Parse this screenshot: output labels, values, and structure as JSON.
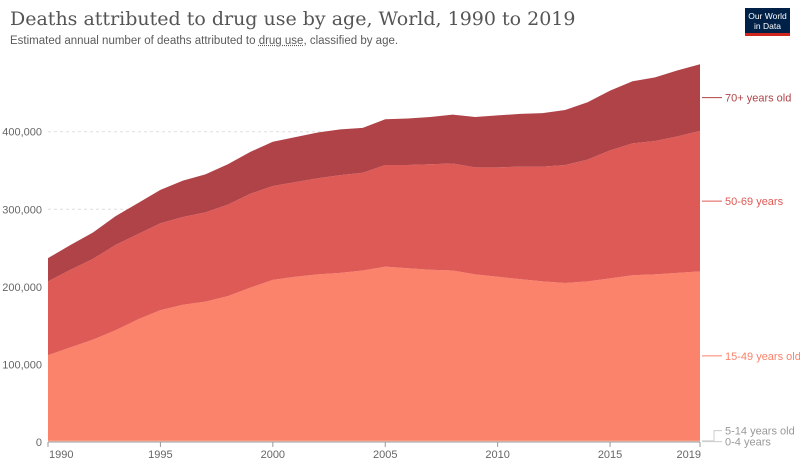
{
  "header": {
    "title": "Deaths attributed to drug use by age, World, 1990 to 2019",
    "subtitle_before": "Estimated annual number of deaths attributed to ",
    "subtitle_term": "drug use",
    "subtitle_after": ", classified by age.",
    "logo_line1": "Our World",
    "logo_line2": "in Data"
  },
  "colors": {
    "0-4 years": "#f7c5b8",
    "5-14 years old": "#fbab93",
    "15-49 years old": "#fb826b",
    "50-69 years": "#de5a56",
    "70+ years old": "#b04348"
  },
  "chart_data": {
    "type": "area",
    "stacked": true,
    "title": "Deaths attributed to drug use by age, World, 1990 to 2019",
    "x": [
      1990,
      1991,
      1992,
      1993,
      1994,
      1995,
      1996,
      1997,
      1998,
      1999,
      2000,
      2001,
      2002,
      2003,
      2004,
      2005,
      2006,
      2007,
      2008,
      2009,
      2010,
      2011,
      2012,
      2013,
      2014,
      2015,
      2016,
      2017,
      2018,
      2019
    ],
    "xticks": [
      "1990",
      "1995",
      "2000",
      "2005",
      "2010",
      "2015",
      "2019"
    ],
    "yticks": [
      "0",
      "100,000",
      "200,000",
      "300,000",
      "400,000"
    ],
    "ylim": [
      0,
      495000
    ],
    "grid": true,
    "legend": "right-end labels",
    "series": [
      {
        "name": "0-4 years",
        "values": [
          1000,
          1000,
          1000,
          1000,
          1000,
          1000,
          1000,
          1000,
          1000,
          1000,
          1000,
          1000,
          1000,
          1000,
          1000,
          1000,
          1000,
          1000,
          1000,
          1000,
          1000,
          1000,
          1000,
          1000,
          1000,
          1000,
          1000,
          1000,
          1000,
          1000
        ]
      },
      {
        "name": "5-14 years old",
        "values": [
          1000,
          1000,
          1000,
          1000,
          1000,
          1000,
          1000,
          1000,
          1000,
          1000,
          1000,
          1000,
          1000,
          1000,
          1000,
          1000,
          1000,
          1000,
          1000,
          1000,
          1000,
          1000,
          1000,
          1000,
          1000,
          1000,
          1000,
          1000,
          1000,
          1000
        ]
      },
      {
        "name": "15-49 years old",
        "values": [
          110000,
          120000,
          130000,
          142000,
          156000,
          168000,
          175000,
          179000,
          186000,
          197000,
          207000,
          211000,
          214000,
          216000,
          219000,
          224000,
          222000,
          220000,
          219000,
          214000,
          211000,
          208000,
          205000,
          203000,
          205000,
          209000,
          213000,
          214000,
          216000,
          218000
        ]
      },
      {
        "name": "50-69 years",
        "values": [
          95000,
          100000,
          104000,
          110000,
          110000,
          112000,
          113000,
          115000,
          118000,
          121000,
          121000,
          122000,
          124000,
          126000,
          126000,
          131000,
          133000,
          136000,
          138000,
          138000,
          141000,
          145000,
          148000,
          152000,
          157000,
          165000,
          170000,
          172000,
          176000,
          181000
        ]
      },
      {
        "name": "70+ years old",
        "values": [
          30000,
          32000,
          34000,
          37000,
          40000,
          43000,
          47000,
          49000,
          52000,
          54000,
          57000,
          58000,
          59000,
          59000,
          58000,
          59000,
          60000,
          61000,
          63000,
          65000,
          67000,
          68000,
          69000,
          71000,
          74000,
          77000,
          80000,
          82000,
          85000,
          86000
        ]
      }
    ]
  }
}
